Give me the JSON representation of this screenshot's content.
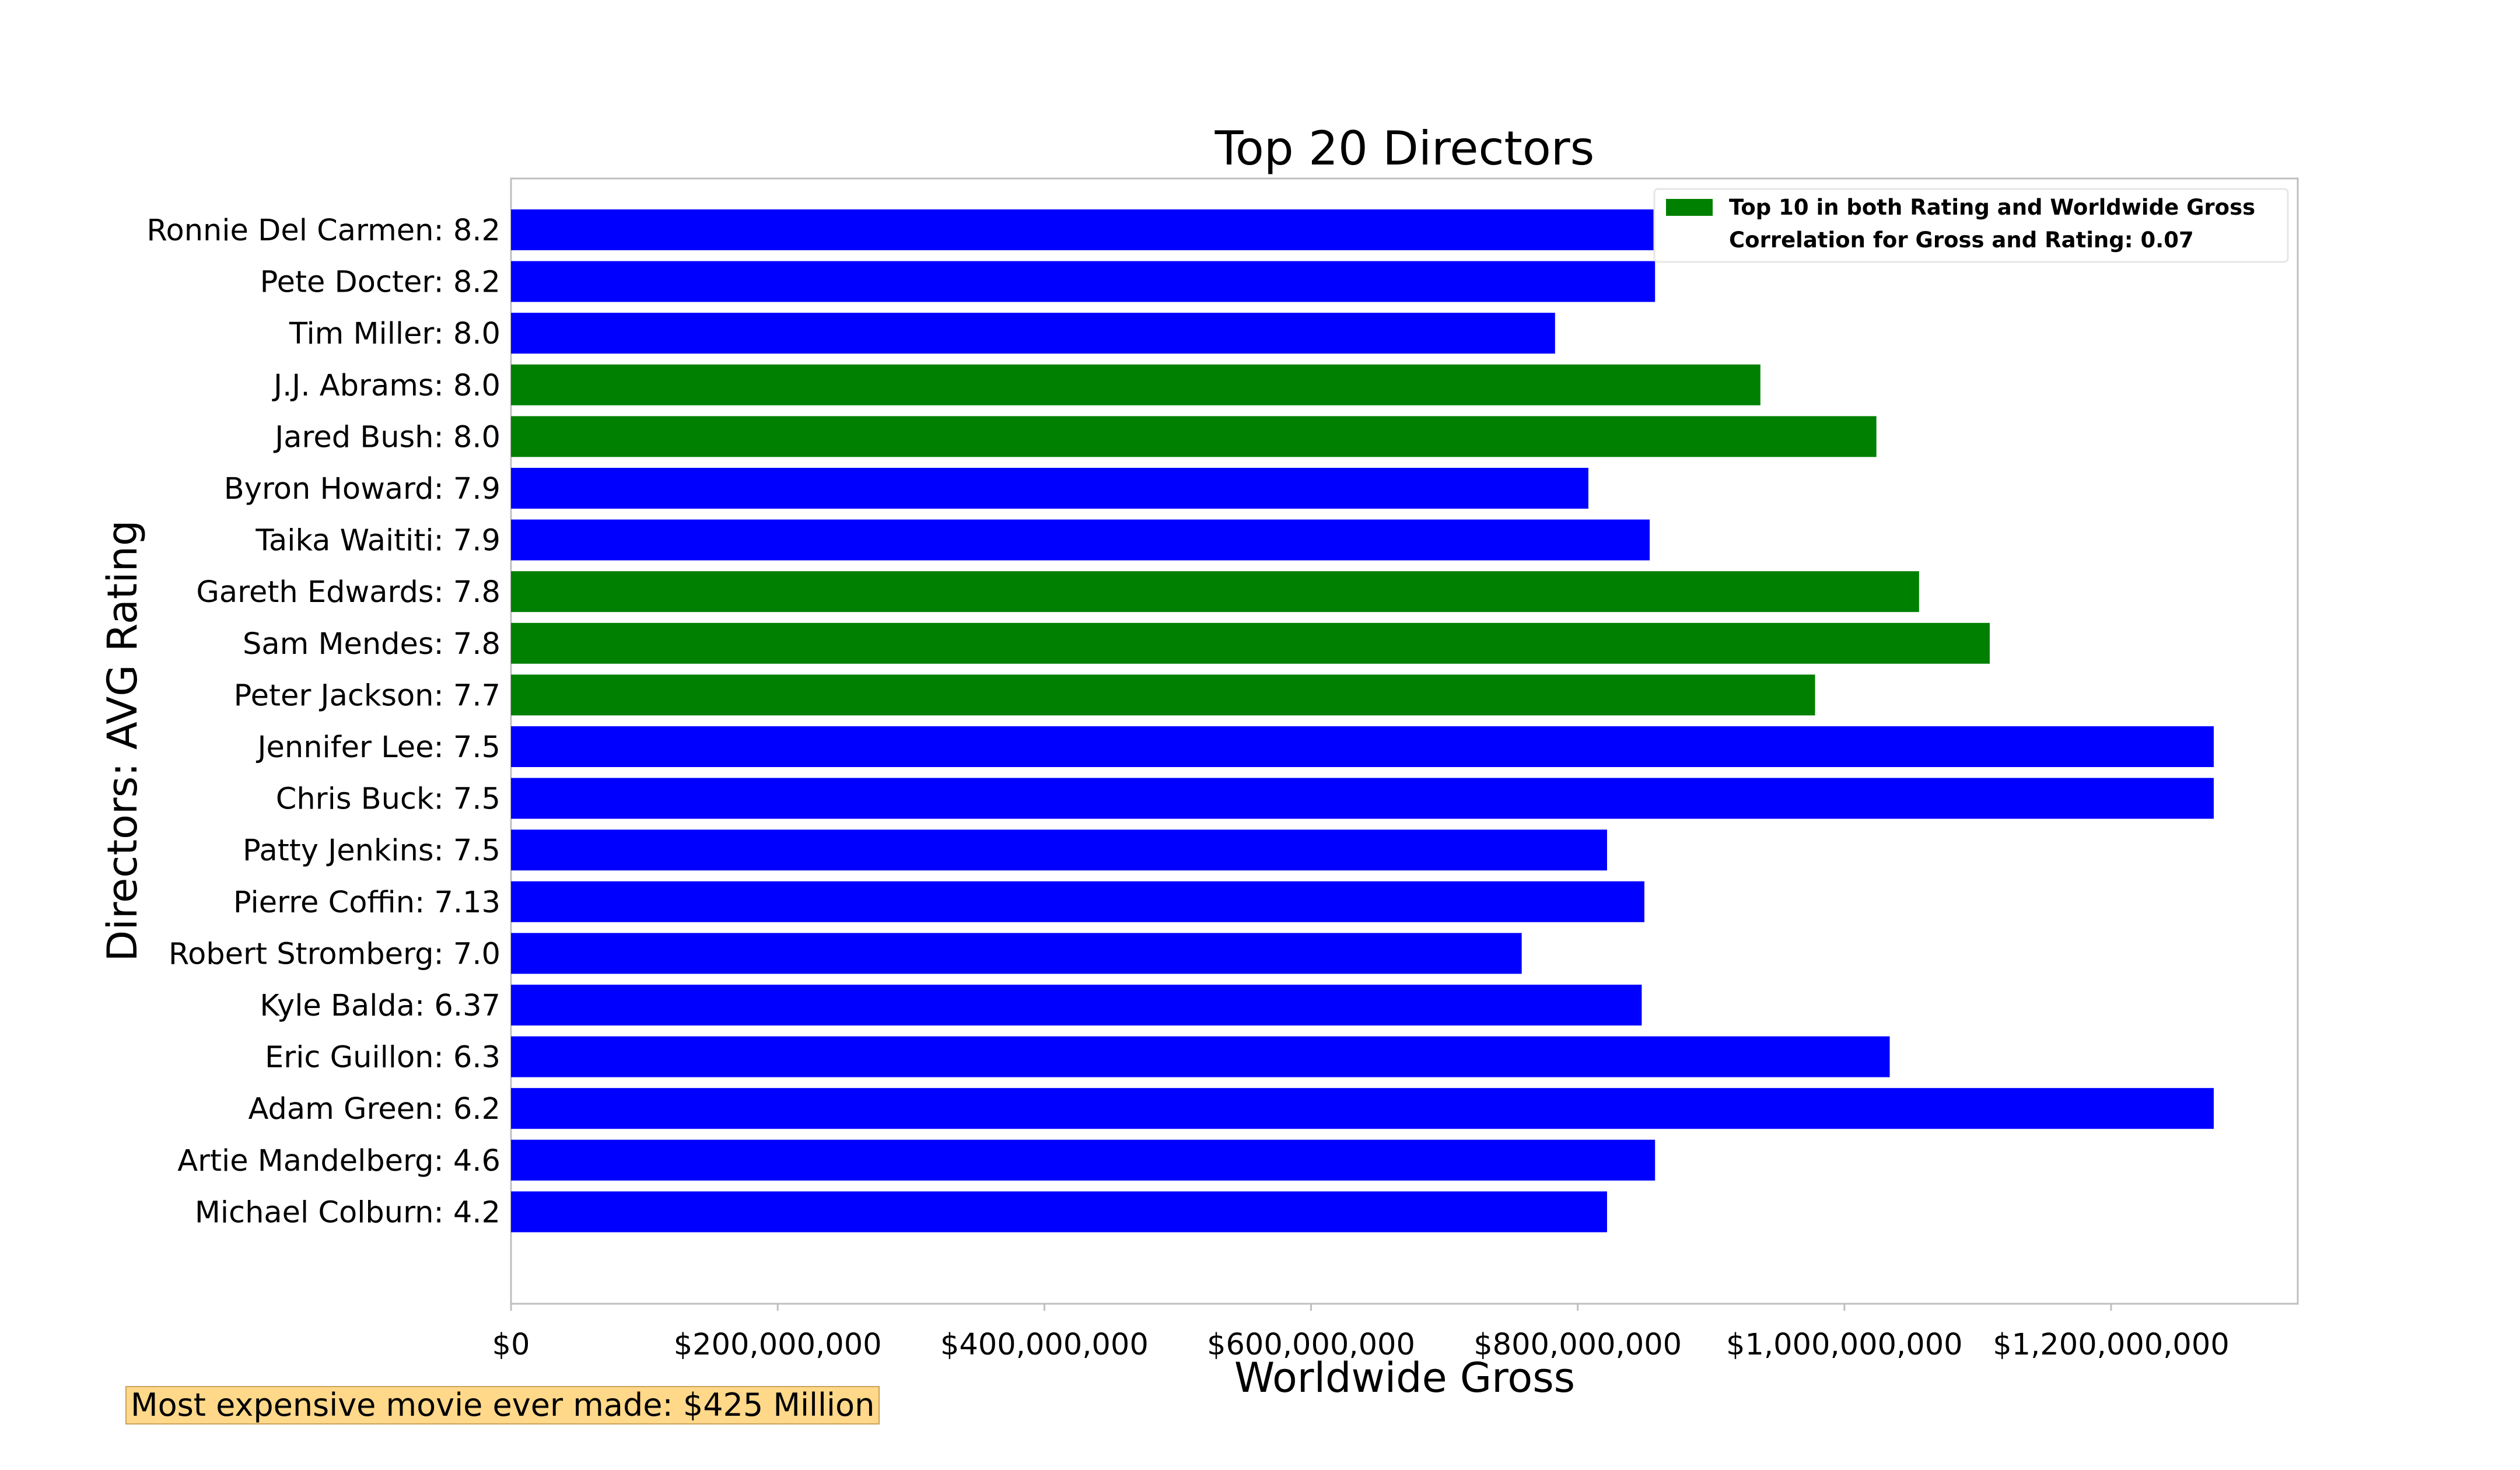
{
  "chart_data": {
    "type": "bar",
    "orientation": "horizontal",
    "title": "Top 20 Directors",
    "xlabel": "Worldwide Gross",
    "ylabel": "Directors: AVG Rating",
    "xlim": [
      0,
      1340000000
    ],
    "x_ticks": [
      0,
      200000000,
      400000000,
      600000000,
      800000000,
      1000000000,
      1200000000
    ],
    "x_tick_labels": [
      "$0",
      "$200,000,000",
      "$400,000,000",
      "$600,000,000",
      "$800,000,000",
      "$1,000,000,000",
      "$1,200,000,000"
    ],
    "categories": [
      "Ronnie Del Carmen: 8.2",
      "Pete Docter: 8.2",
      "Tim Miller: 8.0",
      "J.J. Abrams: 8.0",
      "Jared Bush: 8.0",
      "Byron Howard: 7.9",
      "Taika Waititi: 7.9",
      "Gareth Edwards: 7.8",
      "Sam Mendes: 7.8",
      "Peter Jackson: 7.7",
      "Jennifer Lee: 7.5",
      "Chris Buck: 7.5",
      "Patty Jenkins: 7.5",
      "Pierre Coffin: 7.13",
      "Robert Stromberg: 7.0",
      "Kyle Balda: 6.37",
      "Eric Guillon: 6.3",
      "Adam Green: 6.2",
      "Artie Mandelberg: 4.6",
      "Michael Colburn: 4.2"
    ],
    "values": [
      858000000,
      858000000,
      783000000,
      937000000,
      1024000000,
      808000000,
      854000000,
      1056000000,
      1109000000,
      978000000,
      1277000000,
      1277000000,
      822000000,
      850000000,
      758000000,
      848000000,
      1034000000,
      1277000000,
      858000000,
      822000000
    ],
    "highlight": [
      false,
      false,
      false,
      true,
      true,
      false,
      false,
      true,
      true,
      true,
      false,
      false,
      false,
      false,
      false,
      false,
      false,
      false,
      false,
      false
    ],
    "colors": {
      "default": "#0000ff",
      "highlight": "#008000"
    },
    "legend": {
      "placement": "top-right",
      "entries": [
        {
          "label": "Top 10 in both Rating and Worldwide Gross",
          "color": "#008000"
        },
        {
          "label": "Correlation for Gross and Rating: 0.07"
        }
      ]
    },
    "grid": false
  },
  "annotation": {
    "text": "Most expensive movie ever made: $425 Million",
    "background": "#ffd88a"
  }
}
